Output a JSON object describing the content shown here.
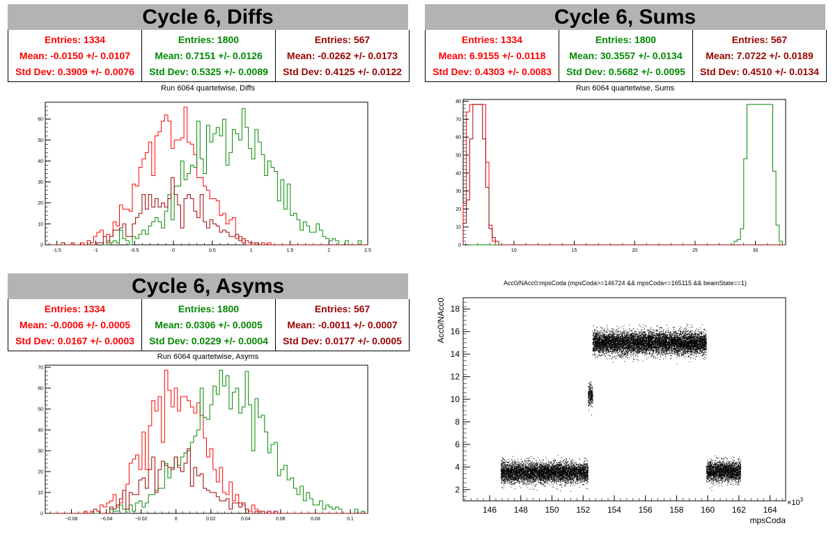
{
  "colors": {
    "red": "#ff0000",
    "green": "#008800",
    "darkred": "#990000",
    "black": "#000000",
    "titlebg": "#b3b3b3"
  },
  "panels": {
    "diffs": {
      "title": "Cycle 6, Diffs",
      "subtitle": "Run 6064 quartetwise, Diffs",
      "stats": [
        {
          "entries": "Entries: 1334",
          "mean": "Mean: -0.0150 +/- 0.0107",
          "std": "Std Dev: 0.3909 +/- 0.0076",
          "color": "#ff0000"
        },
        {
          "entries": "Entries: 1800",
          "mean": "Mean: 0.7151 +/- 0.0126",
          "std": "Std Dev: 0.5325 +/- 0.0089",
          "color": "#008800"
        },
        {
          "entries": "Entries: 567",
          "mean": "Mean: -0.0262 +/- 0.0173",
          "std": "Std Dev: 0.4125 +/- 0.0122",
          "color": "#990000"
        }
      ]
    },
    "sums": {
      "title": "Cycle 6, Sums",
      "subtitle": "Run 6064 quartetwise, Sums",
      "stats": [
        {
          "entries": "Entries: 1334",
          "mean": "Mean: 6.9155 +/- 0.0118",
          "std": "Std Dev: 0.4303 +/- 0.0083",
          "color": "#ff0000"
        },
        {
          "entries": "Entries: 1800",
          "mean": "Mean: 30.3557 +/- 0.0134",
          "std": "Std Dev: 0.5682 +/- 0.0095",
          "color": "#008800"
        },
        {
          "entries": "Entries: 567",
          "mean": "Mean: 7.0722 +/- 0.0189",
          "std": "Std Dev: 0.4510 +/- 0.0134",
          "color": "#990000"
        }
      ]
    },
    "asyms": {
      "title": "Cycle 6, Asyms",
      "subtitle": "Run 6064 quartetwise, Asyms",
      "stats": [
        {
          "entries": "Entries: 1334",
          "mean": "Mean: -0.0006 +/- 0.0005",
          "std": "Std Dev: 0.0167 +/- 0.0003",
          "color": "#ff0000"
        },
        {
          "entries": "Entries: 1800",
          "mean": "Mean: 0.0306 +/- 0.0005",
          "std": "Std Dev: 0.0229 +/- 0.0004",
          "color": "#008800"
        },
        {
          "entries": "Entries: 567",
          "mean": "Mean: -0.0011 +/- 0.0007",
          "std": "Std Dev: 0.0177 +/- 0.0005",
          "color": "#990000"
        }
      ]
    },
    "scatter": {
      "subtitle": "Acc0/NAcc0:mpsCoda (mpsCoda>=146724 && mpsCoda<=165115 && beamState==1)"
    }
  },
  "chart_data": [
    {
      "type": "histogram",
      "id": "diffs",
      "xlim": [
        -1.65,
        2.5
      ],
      "ylim": [
        0,
        68
      ],
      "xticks": [
        -1.5,
        -1,
        -0.5,
        0,
        0.5,
        1,
        1.5,
        2,
        2.5
      ],
      "xtick_labels": [
        "-1.5",
        "-1",
        "-0.5",
        "0",
        "0.5",
        "1",
        "1.5",
        "2",
        "2.5"
      ],
      "yticks": [
        0,
        10,
        20,
        30,
        40,
        50,
        60
      ],
      "ytick_labels": [
        "0",
        "10",
        "20",
        "30",
        "40",
        "50",
        "60"
      ],
      "series": [
        {
          "color": "#ff0000",
          "entries": 1334,
          "mean": -0.015,
          "std": 0.3909
        },
        {
          "color": "#008800",
          "entries": 1800,
          "mean": 0.7151,
          "std": 0.5325
        },
        {
          "color": "#990000",
          "entries": 567,
          "mean": -0.0262,
          "std": 0.4125
        }
      ]
    },
    {
      "type": "histogram",
      "id": "sums",
      "xlim": [
        5.8,
        32.5
      ],
      "ylim": [
        0,
        81
      ],
      "xticks": [
        10,
        15,
        20,
        25,
        30
      ],
      "xtick_labels": [
        "10",
        "15",
        "20",
        "25",
        "30"
      ],
      "yticks": [
        0,
        10,
        20,
        30,
        40,
        50,
        60,
        70,
        80
      ],
      "ytick_labels": [
        "0",
        "10",
        "20",
        "30",
        "40",
        "50",
        "60",
        "70",
        "80"
      ],
      "series": [
        {
          "color": "#ff0000",
          "entries": 1334,
          "mean": 6.9155,
          "std": 0.4303
        },
        {
          "color": "#008800",
          "entries": 1800,
          "mean": 30.3557,
          "std": 0.5682
        },
        {
          "color": "#990000",
          "entries": 567,
          "mean": 7.0722,
          "std": 0.451
        }
      ]
    },
    {
      "type": "histogram",
      "id": "asyms",
      "xlim": [
        -0.075,
        0.11
      ],
      "ylim": [
        0,
        71
      ],
      "xticks": [
        -0.06,
        -0.04,
        -0.02,
        0,
        0.02,
        0.04,
        0.06,
        0.08,
        0.1
      ],
      "xtick_labels": [
        "−0.06",
        "−0.04",
        "−0.02",
        "0",
        "0.02",
        "0.04",
        "0.06",
        "0.08",
        "0.1"
      ],
      "yticks": [
        0,
        10,
        20,
        30,
        40,
        50,
        60,
        70
      ],
      "ytick_labels": [
        "0",
        "10",
        "20",
        "30",
        "40",
        "50",
        "60",
        "70"
      ],
      "series": [
        {
          "color": "#ff0000",
          "entries": 1334,
          "mean": -0.0006,
          "std": 0.0167
        },
        {
          "color": "#008800",
          "entries": 1800,
          "mean": 0.0306,
          "std": 0.0229
        },
        {
          "color": "#990000",
          "entries": 567,
          "mean": -0.0011,
          "std": 0.0177
        }
      ]
    },
    {
      "type": "scatter",
      "id": "scatter",
      "xlabel": "mpsCoda",
      "ylabel": "Acc0/NAcc0",
      "xexponent": "×10",
      "xexponent_power": "3",
      "xlim": [
        144.3,
        165.0
      ],
      "ylim": [
        1.0,
        19.0
      ],
      "xticks": [
        146,
        148,
        150,
        152,
        154,
        156,
        158,
        160,
        162,
        164
      ],
      "xtick_labels": [
        "146",
        "148",
        "150",
        "152",
        "154",
        "156",
        "158",
        "160",
        "162",
        "164"
      ],
      "yticks": [
        2,
        4,
        6,
        8,
        10,
        12,
        14,
        16,
        18
      ],
      "ytick_labels": [
        "2",
        "4",
        "6",
        "8",
        "10",
        "12",
        "14",
        "16",
        "18"
      ],
      "clusters": [
        {
          "x_range": [
            146.7,
            152.3
          ],
          "y_center": 3.5,
          "y_spread": 0.45,
          "points": 5500
        },
        {
          "x_range": [
            152.3,
            152.6
          ],
          "y_center": 10.4,
          "y_spread": 0.45,
          "points": 250
        },
        {
          "x_range": [
            152.6,
            159.9
          ],
          "y_center": 15.0,
          "y_spread": 0.5,
          "points": 8000
        },
        {
          "x_range": [
            159.9,
            162.1
          ],
          "y_center": 3.6,
          "y_spread": 0.45,
          "points": 2200
        }
      ]
    }
  ]
}
